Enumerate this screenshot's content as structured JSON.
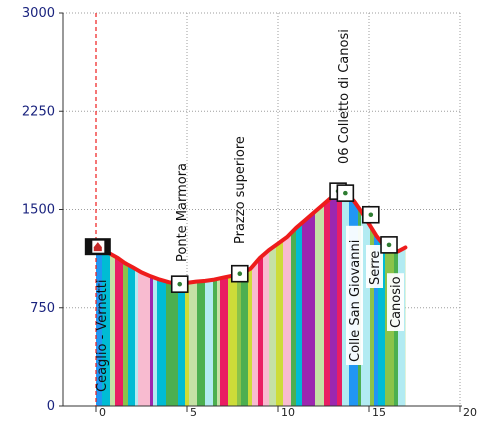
{
  "chart_data": {
    "type": "area",
    "title": "",
    "xlabel": "",
    "ylabel": "",
    "xlim": [
      0,
      20
    ],
    "ylim": [
      0,
      3000
    ],
    "x_ticks": [
      0,
      5,
      10,
      15,
      20
    ],
    "y_ticks": [
      0,
      750,
      1500,
      2250,
      3000
    ],
    "x_tick_labels": [
      "0",
      "5",
      "10",
      "15",
      "20"
    ],
    "y_tick_labels": [
      "0",
      "750",
      "1500",
      "2250",
      "3000"
    ],
    "grid": true,
    "series": [
      {
        "values": [
          {
            "x": 0.0,
            "y": 1220
          },
          {
            "x": 0.4,
            "y": 1190
          },
          {
            "x": 0.8,
            "y": 1160
          },
          {
            "x": 1.2,
            "y": 1130
          },
          {
            "x": 1.6,
            "y": 1090
          },
          {
            "x": 2.0,
            "y": 1060
          },
          {
            "x": 2.5,
            "y": 1020
          },
          {
            "x": 3.0,
            "y": 990
          },
          {
            "x": 3.5,
            "y": 965
          },
          {
            "x": 4.0,
            "y": 945
          },
          {
            "x": 4.5,
            "y": 930
          },
          {
            "x": 5.0,
            "y": 940
          },
          {
            "x": 5.5,
            "y": 950
          },
          {
            "x": 6.0,
            "y": 955
          },
          {
            "x": 6.5,
            "y": 965
          },
          {
            "x": 7.0,
            "y": 980
          },
          {
            "x": 7.5,
            "y": 995
          },
          {
            "x": 8.0,
            "y": 1010
          },
          {
            "x": 8.5,
            "y": 1050
          },
          {
            "x": 9.0,
            "y": 1130
          },
          {
            "x": 9.5,
            "y": 1190
          },
          {
            "x": 10.0,
            "y": 1240
          },
          {
            "x": 10.5,
            "y": 1290
          },
          {
            "x": 11.0,
            "y": 1360
          },
          {
            "x": 11.5,
            "y": 1420
          },
          {
            "x": 12.0,
            "y": 1480
          },
          {
            "x": 12.5,
            "y": 1540
          },
          {
            "x": 13.0,
            "y": 1600
          },
          {
            "x": 13.4,
            "y": 1640
          },
          {
            "x": 13.8,
            "y": 1620
          },
          {
            "x": 14.2,
            "y": 1560
          },
          {
            "x": 14.6,
            "y": 1480
          },
          {
            "x": 15.0,
            "y": 1390
          },
          {
            "x": 15.4,
            "y": 1300
          },
          {
            "x": 15.8,
            "y": 1230
          },
          {
            "x": 16.2,
            "y": 1210
          },
          {
            "x": 16.6,
            "y": 1180
          },
          {
            "x": 17.0,
            "y": 1210
          }
        ]
      }
    ],
    "waypoints": [
      {
        "label": "Ceaglio - Vernetti",
        "x": 0.1,
        "y": 1220,
        "icon": "home-icon"
      },
      {
        "label": "Ponte Marmora",
        "x": 4.6,
        "y": 930,
        "icon": "waypoint-marker-icon"
      },
      {
        "label": "Prazzo superiore",
        "x": 7.9,
        "y": 1010,
        "icon": "waypoint-marker-icon"
      },
      {
        "label": "06 Colletto di Canosi",
        "x": 13.3,
        "y": 1640,
        "icon": "waypoint-marker-icon"
      },
      {
        "label": "Colle San Giovanni",
        "x": 13.7,
        "y": 1625,
        "icon": "waypoint-marker-icon"
      },
      {
        "label": "Serre",
        "x": 15.1,
        "y": 1460,
        "icon": "waypoint-marker-icon"
      },
      {
        "label": "Canosio",
        "x": 16.1,
        "y": 1230,
        "icon": "waypoint-marker-icon"
      }
    ],
    "colors": {
      "profile_line": "#ee1c1c",
      "start_marker_line": "#ee1c1c",
      "axis_labels": "#1a237e",
      "stripe_palette": [
        "#4caf50",
        "#8bc34a",
        "#cddc39",
        "#00bcd4",
        "#2196f3",
        "#e91e63",
        "#9c27b0",
        "#f8bbd0",
        "#b2ebf2",
        "#c5e1a5",
        "#1976d2"
      ]
    }
  }
}
